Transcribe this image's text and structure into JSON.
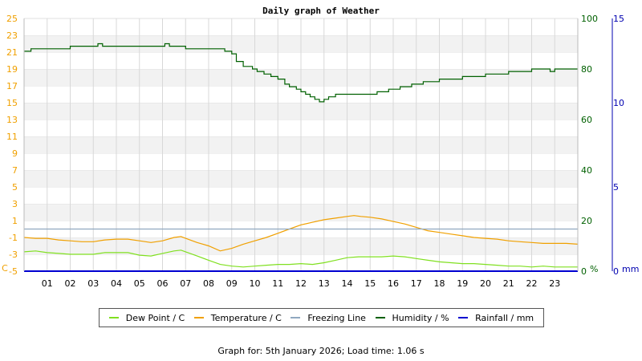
{
  "chart_data": {
    "type": "line",
    "title": "Daily graph of Weather",
    "x_ticks": [
      "01",
      "02",
      "03",
      "04",
      "05",
      "06",
      "07",
      "08",
      "09",
      "10",
      "11",
      "12",
      "13",
      "14",
      "15",
      "16",
      "17",
      "18",
      "19",
      "20",
      "21",
      "22",
      "23"
    ],
    "xlim": [
      0,
      24
    ],
    "y_left": {
      "unit": "C",
      "ticks": [
        "25",
        "23",
        "21",
        "19",
        "17",
        "15",
        "13",
        "11",
        "9",
        "7",
        "5",
        "3",
        "1",
        "-1",
        "-3",
        "-5"
      ],
      "ylim": [
        -5,
        25
      ],
      "color": "#f0a000"
    },
    "y_humidity": {
      "unit": "%",
      "ticks": [
        "100",
        "80",
        "60",
        "40",
        "20",
        "0"
      ],
      "ylim": [
        0,
        100
      ],
      "color": "#006000"
    },
    "y_rain": {
      "unit": "mm",
      "ticks": [
        "15",
        "10",
        "5",
        "0"
      ],
      "ylim": [
        0,
        15
      ],
      "color": "#0000b0"
    },
    "grid": true,
    "series": [
      {
        "name": "Dew Point / C",
        "color": "#80e020",
        "axis": "left",
        "x": [
          0,
          0.5,
          1,
          1.5,
          2,
          2.5,
          3,
          3.5,
          4,
          4.5,
          5,
          5.5,
          6,
          6.5,
          6.8,
          7,
          7.5,
          8,
          8.5,
          9,
          9.5,
          10,
          10.5,
          11,
          11.5,
          12,
          12.5,
          13,
          13.5,
          14,
          14.5,
          15,
          15.5,
          16,
          16.5,
          17,
          17.5,
          18,
          18.5,
          19,
          19.5,
          20,
          20.5,
          21,
          21.5,
          22,
          22.5,
          23,
          23.5,
          24
        ],
        "y": [
          -2.7,
          -2.6,
          -2.8,
          -2.9,
          -3.0,
          -3.0,
          -3.0,
          -2.8,
          -2.8,
          -2.8,
          -3.1,
          -3.2,
          -2.9,
          -2.6,
          -2.5,
          -2.7,
          -3.2,
          -3.7,
          -4.2,
          -4.4,
          -4.5,
          -4.4,
          -4.3,
          -4.2,
          -4.2,
          -4.1,
          -4.2,
          -4.0,
          -3.7,
          -3.4,
          -3.3,
          -3.3,
          -3.3,
          -3.2,
          -3.3,
          -3.5,
          -3.7,
          -3.9,
          -4.0,
          -4.1,
          -4.1,
          -4.2,
          -4.3,
          -4.4,
          -4.4,
          -4.5,
          -4.4,
          -4.5,
          -4.5,
          -4.5
        ]
      },
      {
        "name": "Temperature / C",
        "color": "#f0a000",
        "axis": "left",
        "x": [
          0,
          0.5,
          1,
          1.5,
          2,
          2.5,
          3,
          3.5,
          4,
          4.5,
          5,
          5.5,
          6,
          6.5,
          6.8,
          7,
          7.5,
          8,
          8.5,
          9,
          9.5,
          10,
          10.5,
          11,
          11.5,
          12,
          12.5,
          13,
          13.5,
          14,
          14.3,
          14.6,
          15,
          15.5,
          16,
          16.5,
          17,
          17.5,
          18,
          18.5,
          19,
          19.5,
          20,
          20.5,
          21,
          21.5,
          22,
          22.5,
          23,
          23.5,
          24
        ],
        "y": [
          -1.0,
          -1.1,
          -1.1,
          -1.3,
          -1.4,
          -1.5,
          -1.5,
          -1.3,
          -1.2,
          -1.2,
          -1.4,
          -1.6,
          -1.4,
          -1.0,
          -0.9,
          -1.1,
          -1.6,
          -2.0,
          -2.6,
          -2.3,
          -1.8,
          -1.4,
          -1.0,
          -0.5,
          0,
          0.5,
          0.8,
          1.1,
          1.3,
          1.5,
          1.6,
          1.5,
          1.4,
          1.2,
          0.9,
          0.6,
          0.2,
          -0.2,
          -0.4,
          -0.6,
          -0.8,
          -1.0,
          -1.1,
          -1.2,
          -1.4,
          -1.5,
          -1.6,
          -1.7,
          -1.7,
          -1.7,
          -1.8
        ]
      },
      {
        "name": "Freezing Line",
        "color": "#90a8c0",
        "axis": "left",
        "x": [
          0,
          24
        ],
        "y": [
          0,
          0
        ]
      },
      {
        "name": "Humidity / %",
        "color": "#006000",
        "axis": "humidity",
        "step": true,
        "x": [
          0,
          0.2,
          0.3,
          0.5,
          1,
          1.8,
          2,
          3,
          3.2,
          3.4,
          4,
          5,
          6,
          6.1,
          6.3,
          7,
          7.5,
          8,
          8.5,
          8.7,
          9,
          9.2,
          9.5,
          9.9,
          10.1,
          10.4,
          10.7,
          11,
          11.3,
          11.5,
          11.8,
          12,
          12.2,
          12.4,
          12.6,
          12.8,
          13,
          13.2,
          13.5,
          14,
          14.4,
          14.8,
          15.3,
          15.8,
          16.3,
          16.8,
          17.3,
          18,
          18.5,
          19,
          19.5,
          20,
          20.5,
          21,
          21.5,
          22,
          22.5,
          22.8,
          23,
          23.5,
          24
        ],
        "y": [
          87,
          87,
          88,
          88,
          88,
          88,
          89,
          89,
          90,
          89,
          89,
          89,
          89,
          90,
          89,
          88,
          88,
          88,
          88,
          87,
          86,
          83,
          81,
          80,
          79,
          78,
          77,
          76,
          74,
          73,
          72,
          71,
          70,
          69,
          68,
          67,
          68,
          69,
          70,
          70,
          70,
          70,
          71,
          72,
          73,
          74,
          75,
          76,
          76,
          77,
          77,
          78,
          78,
          79,
          79,
          80,
          80,
          79,
          80,
          80,
          80
        ]
      },
      {
        "name": "Rainfall / mm",
        "color": "#0000d0",
        "axis": "rain",
        "x": [
          0,
          24
        ],
        "y": [
          0,
          0
        ]
      }
    ]
  },
  "footer": "Graph for: 5th January 2026; Load time: 1.06 s"
}
